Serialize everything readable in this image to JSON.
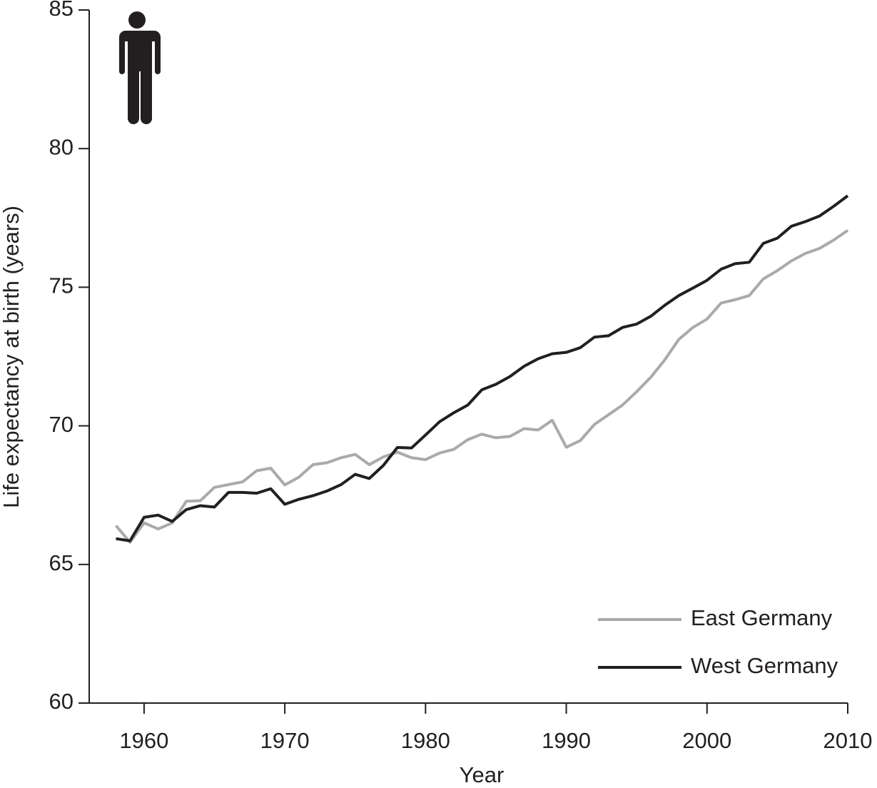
{
  "chart_data": {
    "type": "line",
    "xlabel": "Year",
    "ylabel": "Life expectancy at birth (years)",
    "x": [
      1958,
      1959,
      1960,
      1961,
      1962,
      1963,
      1964,
      1965,
      1966,
      1967,
      1968,
      1969,
      1970,
      1971,
      1972,
      1973,
      1974,
      1975,
      1976,
      1977,
      1978,
      1979,
      1980,
      1981,
      1982,
      1983,
      1984,
      1985,
      1986,
      1987,
      1988,
      1989,
      1990,
      1991,
      1992,
      1993,
      1994,
      1995,
      1996,
      1997,
      1998,
      1999,
      2000,
      2001,
      2002,
      2003,
      2004,
      2005,
      2006,
      2007,
      2008,
      2009,
      2010
    ],
    "series": [
      {
        "name": "East Germany",
        "color": "#aaaaaa",
        "values": [
          66.4,
          65.8,
          66.5,
          66.28,
          66.5,
          67.28,
          67.3,
          67.78,
          67.88,
          67.98,
          68.38,
          68.47,
          67.87,
          68.15,
          68.6,
          68.67,
          68.85,
          68.97,
          68.6,
          68.88,
          69.05,
          68.85,
          68.78,
          69.02,
          69.15,
          69.5,
          69.7,
          69.57,
          69.62,
          69.9,
          69.85,
          70.2,
          69.23,
          69.47,
          70.05,
          70.4,
          70.75,
          71.23,
          71.75,
          72.38,
          73.12,
          73.55,
          73.85,
          74.43,
          74.55,
          74.7,
          75.3,
          75.6,
          75.95,
          76.22,
          76.4,
          76.7,
          77.05
        ]
      },
      {
        "name": "West Germany",
        "color": "#231f20",
        "values": [
          65.93,
          65.85,
          66.7,
          66.78,
          66.55,
          66.98,
          67.12,
          67.07,
          67.6,
          67.6,
          67.57,
          67.73,
          67.17,
          67.35,
          67.48,
          67.65,
          67.88,
          68.25,
          68.1,
          68.57,
          69.22,
          69.2,
          69.67,
          70.15,
          70.47,
          70.75,
          71.3,
          71.5,
          71.78,
          72.15,
          72.42,
          72.6,
          72.65,
          72.82,
          73.2,
          73.25,
          73.55,
          73.67,
          73.95,
          74.35,
          74.7,
          74.97,
          75.25,
          75.65,
          75.85,
          75.9,
          76.58,
          76.77,
          77.2,
          77.37,
          77.57,
          77.92,
          78.3
        ]
      }
    ],
    "xlim": [
      1956.1,
      2010
    ],
    "xticks": [
      1960,
      1970,
      1980,
      1990,
      2000,
      2010
    ],
    "ylim": [
      60,
      85
    ],
    "yticks": [
      60,
      65,
      70,
      75,
      80,
      85
    ],
    "legend": "lower right"
  }
}
